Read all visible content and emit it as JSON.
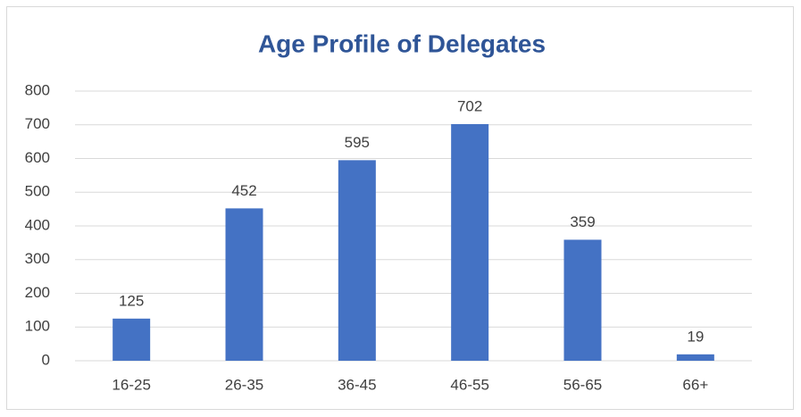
{
  "chart_data": {
    "type": "bar",
    "title": "Age Profile of Delegates",
    "categories": [
      "16-25",
      "26-35",
      "36-45",
      "46-55",
      "56-65",
      "66+"
    ],
    "values": [
      125,
      452,
      595,
      702,
      359,
      19
    ],
    "color": "#4472c4",
    "ylim": [
      0,
      800
    ],
    "yticks": [
      0,
      100,
      200,
      300,
      400,
      500,
      600,
      700,
      800
    ],
    "grid": true,
    "data_labels": true
  }
}
